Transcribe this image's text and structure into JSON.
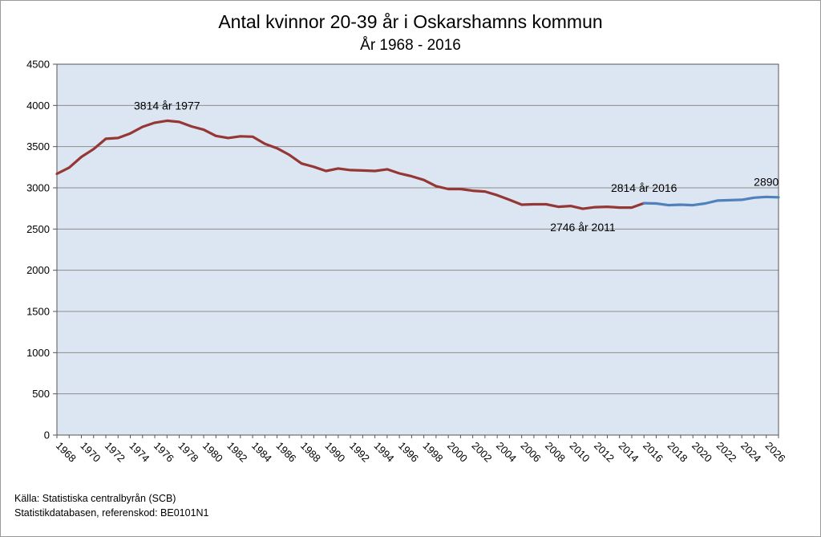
{
  "chart_data": {
    "type": "line",
    "title": "Antal kvinnor 20-39 år i Oskarshamns kommun",
    "subtitle": "År 1968 - 2016",
    "xlabel": "",
    "ylabel": "",
    "xlim": [
      1968,
      2027
    ],
    "ylim": [
      0,
      4500
    ],
    "y_ticks": [
      "0",
      "500",
      "1000",
      "1500",
      "2000",
      "2500",
      "3000",
      "3500",
      "4000",
      "4500"
    ],
    "x_ticks": [
      "1968",
      "1970",
      "1972",
      "1974",
      "1976",
      "1978",
      "1980",
      "1982",
      "1984",
      "1986",
      "1988",
      "1990",
      "1992",
      "1994",
      "1996",
      "1998",
      "2000",
      "2002",
      "2004",
      "2006",
      "2008",
      "2010",
      "2012",
      "2014",
      "2016",
      "2018",
      "2020",
      "2022",
      "2024",
      "2026"
    ],
    "grid": true,
    "plot_background": "#dce6f2",
    "series": [
      {
        "color": "#953735",
        "x": [
          1968,
          1969,
          1970,
          1971,
          1972,
          1973,
          1974,
          1975,
          1976,
          1977,
          1978,
          1979,
          1980,
          1981,
          1982,
          1983,
          1984,
          1985,
          1986,
          1987,
          1988,
          1989,
          1990,
          1991,
          1992,
          1993,
          1994,
          1995,
          1996,
          1997,
          1998,
          1999,
          2000,
          2001,
          2002,
          2003,
          2004,
          2005,
          2006,
          2007,
          2008,
          2009,
          2010,
          2011,
          2012,
          2013,
          2014,
          2015,
          2016
        ],
        "values": [
          3170,
          3245,
          3375,
          3470,
          3595,
          3605,
          3660,
          3740,
          3790,
          3814,
          3800,
          3745,
          3705,
          3630,
          3605,
          3625,
          3620,
          3535,
          3480,
          3400,
          3295,
          3255,
          3205,
          3235,
          3215,
          3210,
          3205,
          3225,
          3175,
          3140,
          3095,
          3020,
          2985,
          2985,
          2965,
          2955,
          2910,
          2855,
          2795,
          2800,
          2800,
          2770,
          2780,
          2746,
          2765,
          2770,
          2760,
          2760,
          2814
        ]
      },
      {
        "color": "#4f81bd",
        "x": [
          2016,
          2017,
          2018,
          2019,
          2020,
          2021,
          2022,
          2023,
          2024,
          2025,
          2026,
          2027
        ],
        "values": [
          2814,
          2810,
          2790,
          2795,
          2790,
          2810,
          2845,
          2850,
          2855,
          2880,
          2890,
          2885
        ]
      }
    ],
    "annotations": [
      {
        "text": "3814 år 1977",
        "x": 1977,
        "y": 3814,
        "anchor": "above"
      },
      {
        "text": "2814 år 2016",
        "x": 2016,
        "y": 2814,
        "anchor": "above"
      },
      {
        "text": "2746 år 2011",
        "x": 2011,
        "y": 2746,
        "anchor": "below"
      },
      {
        "text": "2890",
        "x": 2026,
        "y": 2890,
        "anchor": "above"
      }
    ]
  },
  "source": {
    "line1": "Källa: Statistiska centralbyrån (SCB)",
    "line2": "Statistikdatabasen, referenskod:  BE0101N1"
  }
}
